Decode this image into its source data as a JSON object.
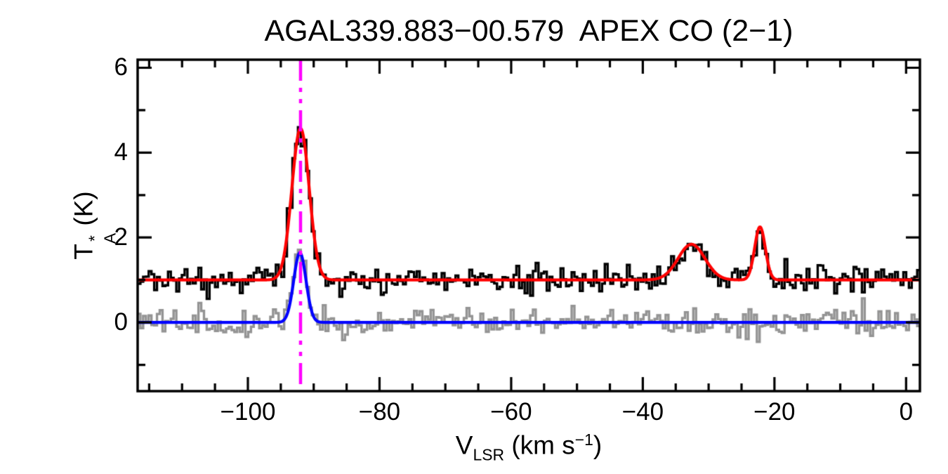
{
  "figure": {
    "title": "AGAL339.883−00.579  APEX CO (2−1)",
    "background_color": "#FFFFFF",
    "foreground_color": "#000000"
  },
  "axes": {
    "xlabel": {
      "prefix": "V",
      "sub": "LSR",
      "mid": " (km s",
      "sup": "−1",
      "suffix": ")"
    },
    "ylabel": {
      "prefix": "T",
      "sup": "*",
      "sub": "A",
      "suffix": " (K)"
    },
    "x_tick_labels": [
      "−100",
      "−80",
      "−60",
      "−40",
      "−20",
      "0"
    ],
    "y_tick_labels": [
      "0",
      "2",
      "4",
      "6"
    ]
  },
  "chart_data": {
    "type": "line",
    "subtype": "spectrum-with-gaussian-fits",
    "title": "AGAL339.883−00.579  APEX CO (2−1)",
    "xlabel": "V_LSR (km s^−1)",
    "ylabel": "T*_A (K)",
    "xlim": [
      -116.75,
      2.1
    ],
    "ylim": [
      -1.62,
      6.19
    ],
    "x_major_ticks": [
      -100,
      -80,
      -60,
      -40,
      -20,
      0
    ],
    "x_minor_step": 5,
    "y_major_ticks": [
      0,
      2,
      4,
      6
    ],
    "y_minor_step": 1,
    "grid": false,
    "legend": "none",
    "frame_color": "#000000",
    "series": [
      {
        "name": "co21-spectrum",
        "style": "histogram",
        "color": "#000000",
        "line_width": 3.4,
        "baseline_offset_K": 1.0,
        "noise_sigma_K": 0.16,
        "noise_seed": 20,
        "bin_width_kms": 0.42,
        "gaussians": [
          {
            "center_kms": -92.0,
            "amplitude_K": 3.57,
            "fwhm_kms": 3.1
          },
          {
            "center_kms": -32.6,
            "amplitude_K": 0.84,
            "fwhm_kms": 4.8
          },
          {
            "center_kms": -22.2,
            "amplitude_K": 1.25,
            "fwhm_kms": 1.9
          }
        ]
      },
      {
        "name": "isotopologue-spectrum",
        "style": "histogram",
        "color": "#949494",
        "line_width": 3.4,
        "baseline_offset_K": 0.0,
        "noise_sigma_K": 0.16,
        "noise_seed": 77,
        "bin_width_kms": 0.42,
        "gaussians": [
          {
            "center_kms": -92.1,
            "amplitude_K": 1.64,
            "fwhm_kms": 2.2
          }
        ]
      },
      {
        "name": "co21-gaussian-fit",
        "style": "smooth",
        "color": "#FF0000",
        "line_width": 4.2,
        "baseline_offset_K": 1.0,
        "gaussians": [
          {
            "center_kms": -92.0,
            "amplitude_K": 3.57,
            "fwhm_kms": 3.1
          },
          {
            "center_kms": -32.6,
            "amplitude_K": 0.84,
            "fwhm_kms": 4.8
          },
          {
            "center_kms": -22.2,
            "amplitude_K": 1.25,
            "fwhm_kms": 1.9
          }
        ]
      },
      {
        "name": "isotopologue-gaussian-fit",
        "style": "smooth",
        "color": "#0000FF",
        "line_width": 4.2,
        "baseline_offset_K": 0.0,
        "gaussians": [
          {
            "center_kms": -92.1,
            "amplitude_K": 1.64,
            "fwhm_kms": 2.2
          }
        ]
      }
    ],
    "vline": {
      "name": "systemic-velocity-marker",
      "x_kms": -92.0,
      "color": "#FF00FF",
      "style": "dash-dot-dot",
      "dash_pattern": [
        30,
        10,
        6,
        10,
        6,
        10
      ],
      "line_width": 4.5
    },
    "peaks_readout": [
      {
        "velocity_kms": -92.0,
        "fit_peak_K": 4.57,
        "spectrum_peak_K": 4.97
      },
      {
        "velocity_kms": -32.6,
        "fit_peak_K": 1.84
      },
      {
        "velocity_kms": -22.2,
        "fit_peak_K": 2.25,
        "spectrum_peak_K": 2.5
      }
    ]
  }
}
